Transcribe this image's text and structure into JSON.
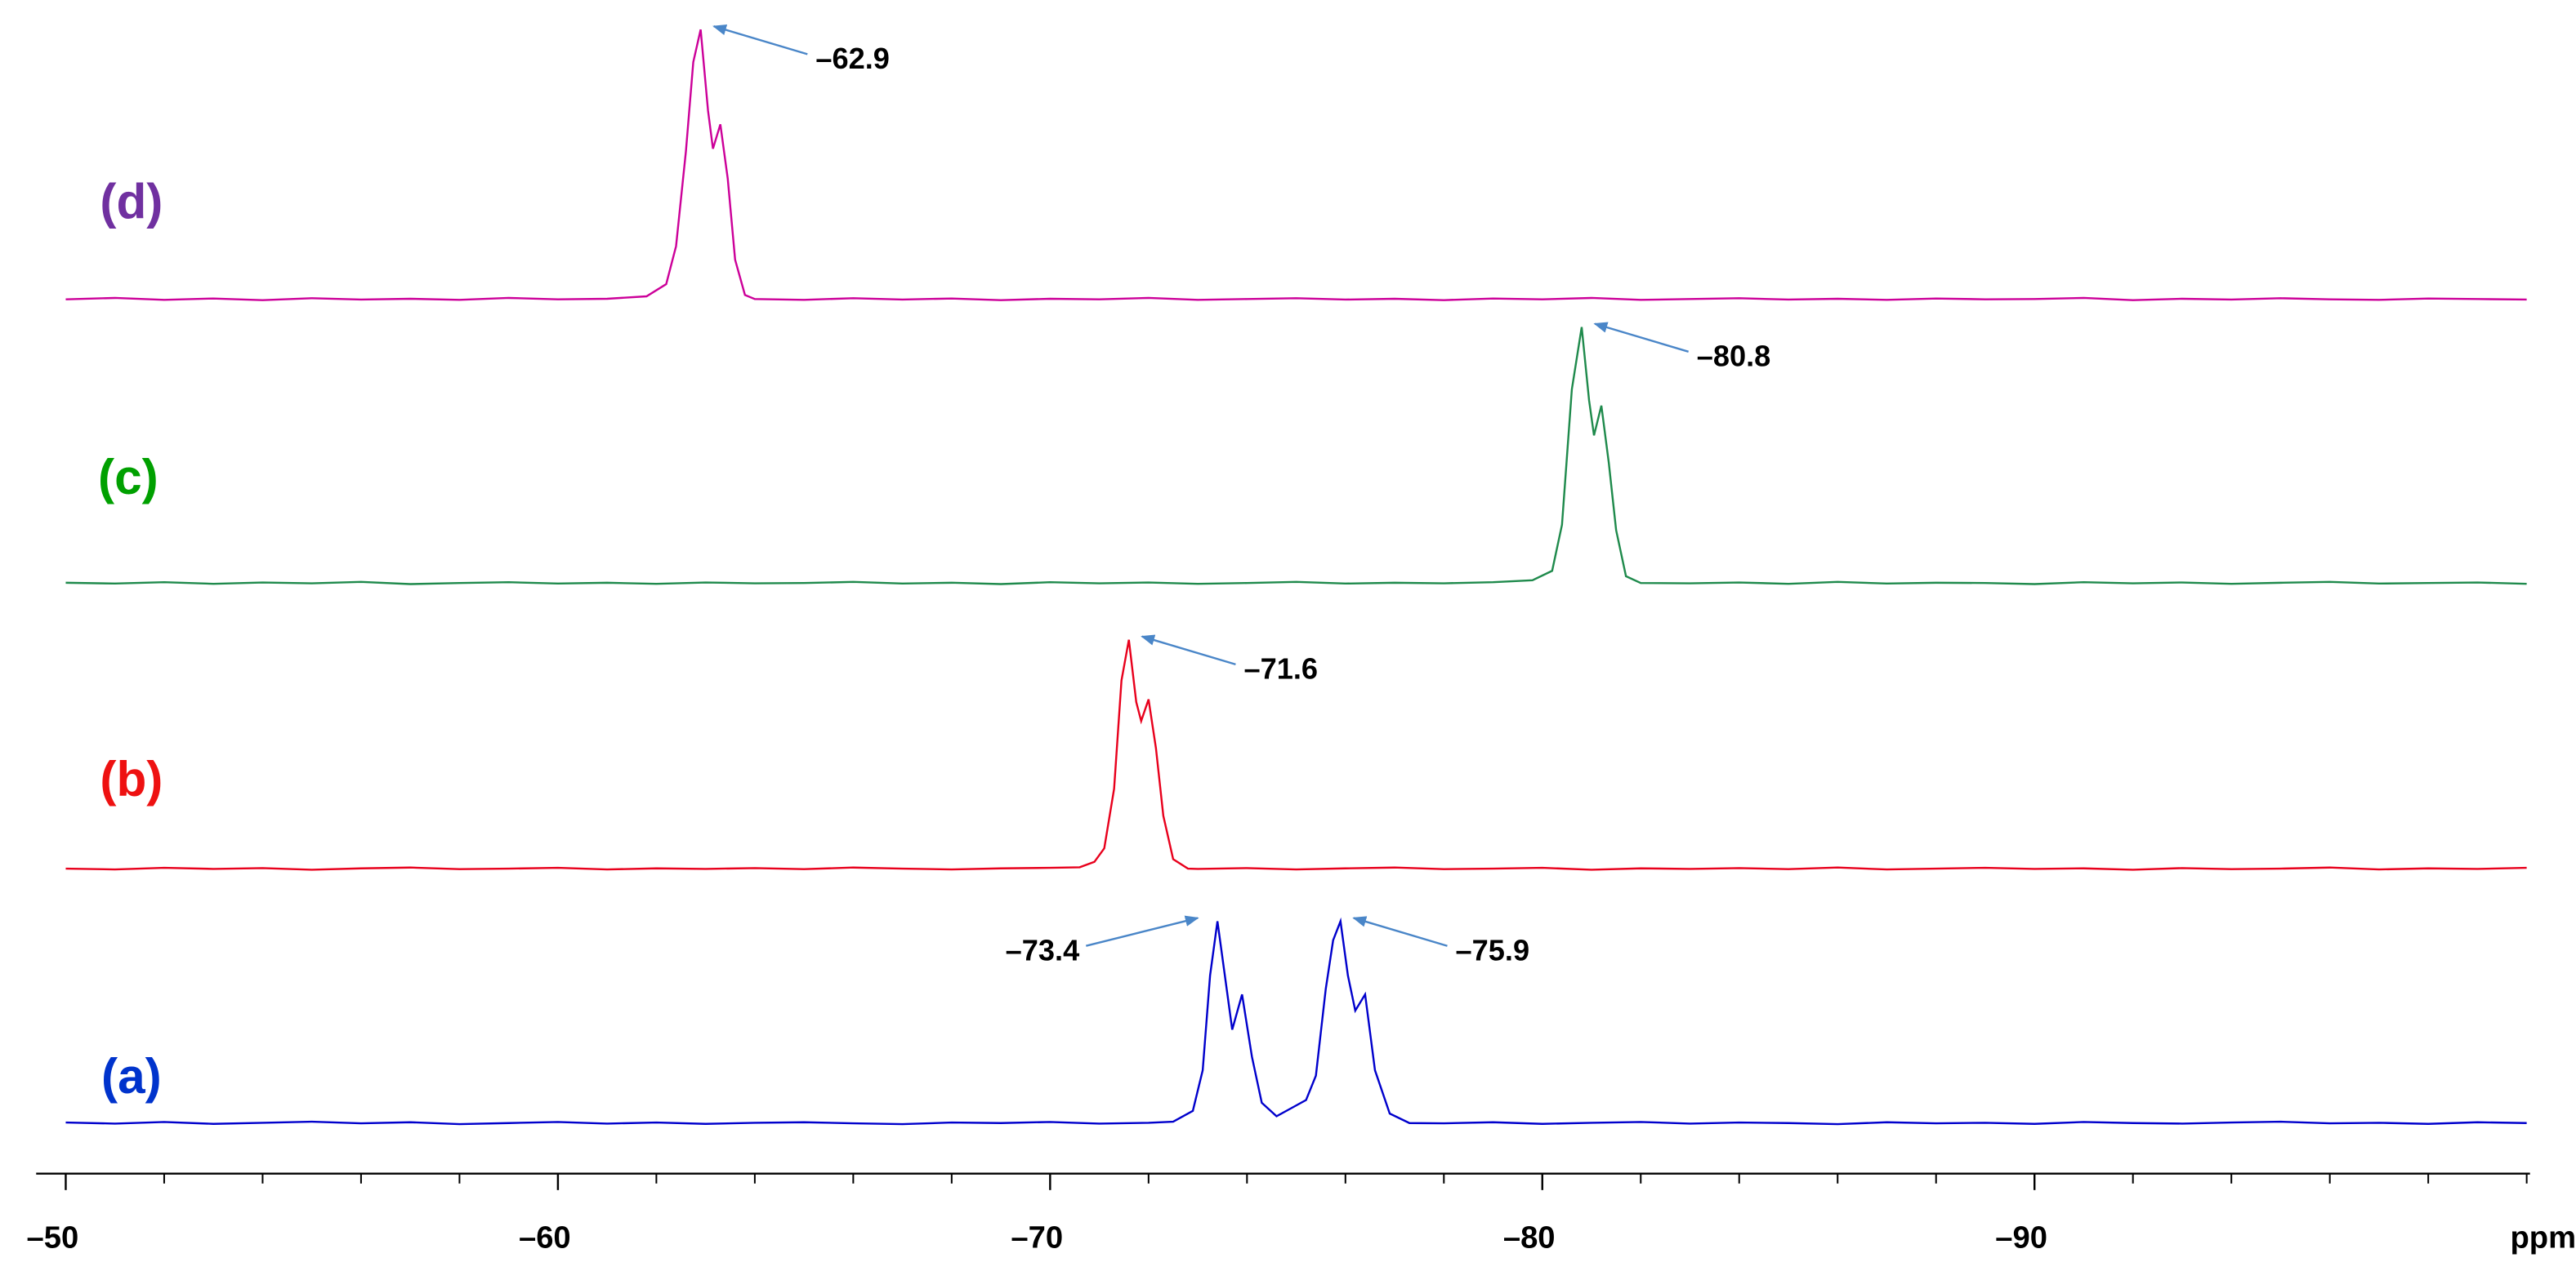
{
  "chart_data": {
    "type": "line",
    "x_label": "ppm",
    "xlim": [
      -50,
      -100
    ],
    "xticks": [
      {
        "value": -50,
        "label": "–50"
      },
      {
        "value": -60,
        "label": "–60"
      },
      {
        "value": -70,
        "label": "–70"
      },
      {
        "value": -80,
        "label": "–80"
      },
      {
        "value": -90,
        "label": "–90"
      }
    ],
    "minor_xticks": [
      -52,
      -54,
      -56,
      -58,
      -62,
      -64,
      -66,
      -68,
      -72,
      -74,
      -76,
      -78,
      -82,
      -84,
      -86,
      -88,
      -92,
      -94,
      -96,
      -98,
      -100
    ],
    "series": [
      {
        "name": "(a)",
        "color": "#0000cc",
        "label_color": "#0033cc",
        "x": [
          -50,
          -51,
          -52,
          -53,
          -54,
          -55,
          -56,
          -57,
          -58,
          -59,
          -60,
          -61,
          -62,
          -63,
          -64,
          -65,
          -66,
          -67,
          -68,
          -69,
          -70,
          -71,
          -72,
          -72.5,
          -72.9,
          -73.1,
          -73.25,
          -73.4,
          -73.55,
          -73.7,
          -73.9,
          -74.1,
          -74.3,
          -74.6,
          -74.9,
          -75.2,
          -75.4,
          -75.6,
          -75.75,
          -75.9,
          -76.05,
          -76.2,
          -76.4,
          -76.6,
          -76.9,
          -77.3,
          -78,
          -79,
          -80,
          -81,
          -82,
          -83,
          -84,
          -85,
          -86,
          -87,
          -88,
          -89,
          -90,
          -91,
          -92,
          -93,
          -94,
          -95,
          -96,
          -97,
          -98,
          -99,
          -100
        ],
        "values": [
          0.7,
          0.3,
          0.9,
          0.2,
          0.6,
          1,
          0.4,
          0.8,
          0.1,
          0.5,
          0.9,
          0.3,
          0.7,
          0.2,
          0.6,
          0.8,
          0.4,
          0.1,
          0.7,
          0.5,
          0.9,
          0.3,
          0.6,
          1,
          5,
          20,
          55,
          75,
          55,
          35,
          48,
          25,
          8,
          3,
          6,
          9,
          18,
          50,
          68,
          75,
          55,
          42,
          48,
          20,
          4,
          0.5,
          0.4,
          0.8,
          0.2,
          0.6,
          0.9,
          0.3,
          0.7,
          0.5,
          0.1,
          0.8,
          0.4,
          0.6,
          0.2,
          0.9,
          0.5,
          0.3,
          0.7,
          1,
          0.4,
          0.6,
          0.2,
          0.8,
          0.5
        ],
        "peak_labels": [
          {
            "value": -73.4,
            "label": "–73.4"
          },
          {
            "value": -75.9,
            "label": "–75.9"
          }
        ]
      },
      {
        "name": "(b)",
        "color": "#e8001c",
        "label_color": "#ee1111",
        "x": [
          -50,
          -51,
          -52,
          -53,
          -54,
          -55,
          -56,
          -57,
          -58,
          -59,
          -60,
          -61,
          -62,
          -63,
          -64,
          -65,
          -66,
          -67,
          -68,
          -69,
          -70,
          -70.6,
          -70.9,
          -71.1,
          -71.3,
          -71.45,
          -71.6,
          -71.75,
          -71.85,
          -72.0,
          -72.15,
          -72.3,
          -72.5,
          -72.8,
          -73,
          -74,
          -75,
          -76,
          -77,
          -78,
          -79,
          -80,
          -81,
          -82,
          -83,
          -84,
          -85,
          -86,
          -87,
          -88,
          -89,
          -90,
          -91,
          -92,
          -93,
          -94,
          -95,
          -96,
          -97,
          -98,
          -99,
          -100
        ],
        "values": [
          0.5,
          0.2,
          0.8,
          0.4,
          0.7,
          0.1,
          0.6,
          0.9,
          0.3,
          0.5,
          0.8,
          0.2,
          0.6,
          0.4,
          0.7,
          0.3,
          0.9,
          0.5,
          0.2,
          0.6,
          0.8,
          1,
          3,
          8,
          30,
          70,
          85,
          62,
          55,
          63,
          45,
          20,
          4,
          0.5,
          0.4,
          0.7,
          0.2,
          0.6,
          0.9,
          0.3,
          0.5,
          0.8,
          0.1,
          0.6,
          0.4,
          0.7,
          0.3,
          0.9,
          0.2,
          0.5,
          0.8,
          0.4,
          0.6,
          0.1,
          0.7,
          0.3,
          0.5,
          0.9,
          0.2,
          0.6,
          0.4,
          0.8
        ],
        "peak_labels": [
          {
            "value": -71.6,
            "label": "–71.6"
          }
        ]
      },
      {
        "name": "(c)",
        "color": "#1f8a4c",
        "label_color": "#00a000",
        "x": [
          -50,
          -51,
          -52,
          -53,
          -54,
          -55,
          -56,
          -57,
          -58,
          -59,
          -60,
          -61,
          -62,
          -63,
          -64,
          -65,
          -66,
          -67,
          -68,
          -69,
          -70,
          -71,
          -72,
          -73,
          -74,
          -75,
          -76,
          -77,
          -78,
          -79,
          -79.8,
          -80.2,
          -80.4,
          -80.6,
          -80.8,
          -80.95,
          -81.05,
          -81.2,
          -81.35,
          -81.5,
          -81.7,
          -82,
          -83,
          -84,
          -85,
          -86,
          -87,
          -88,
          -89,
          -90,
          -91,
          -92,
          -93,
          -94,
          -95,
          -96,
          -97,
          -98,
          -99,
          -100
        ],
        "values": [
          0.6,
          0.3,
          0.8,
          0.2,
          0.7,
          0.4,
          0.9,
          0.1,
          0.5,
          0.8,
          0.3,
          0.6,
          0.2,
          0.7,
          0.4,
          0.5,
          0.9,
          0.3,
          0.6,
          0.1,
          0.8,
          0.4,
          0.7,
          0.2,
          0.5,
          0.9,
          0.3,
          0.6,
          0.4,
          0.8,
          1.5,
          5,
          22,
          72,
          95,
          68,
          55,
          66,
          45,
          20,
          3,
          0.5,
          0.4,
          0.7,
          0.2,
          0.9,
          0.3,
          0.6,
          0.5,
          0.1,
          0.8,
          0.4,
          0.7,
          0.2,
          0.6,
          0.9,
          0.3,
          0.5,
          0.7,
          0.2
        ],
        "peak_labels": [
          {
            "value": -80.8,
            "label": "–80.8"
          }
        ]
      },
      {
        "name": "(d)",
        "color": "#cc0099",
        "label_color": "#7030a0",
        "x": [
          -50,
          -51,
          -52,
          -53,
          -54,
          -55,
          -56,
          -57,
          -58,
          -59,
          -60,
          -61,
          -61.8,
          -62.2,
          -62.4,
          -62.6,
          -62.75,
          -62.9,
          -63.05,
          -63.15,
          -63.3,
          -63.45,
          -63.6,
          -63.8,
          -64,
          -65,
          -66,
          -67,
          -68,
          -69,
          -70,
          -71,
          -72,
          -73,
          -74,
          -75,
          -76,
          -77,
          -78,
          -79,
          -80,
          -81,
          -82,
          -83,
          -84,
          -85,
          -86,
          -87,
          -88,
          -89,
          -90,
          -91,
          -92,
          -93,
          -94,
          -95,
          -96,
          -97,
          -98,
          -99,
          -100
        ],
        "values": [
          0.4,
          0.9,
          0.2,
          0.7,
          0.1,
          0.8,
          0.3,
          0.6,
          0.2,
          0.9,
          0.4,
          0.6,
          1.5,
          6,
          20,
          55,
          88,
          100,
          70,
          56,
          65,
          45,
          15,
          2,
          0.5,
          0.2,
          0.8,
          0.3,
          0.7,
          0.1,
          0.6,
          0.4,
          0.9,
          0.2,
          0.5,
          0.8,
          0.3,
          0.6,
          0.1,
          0.7,
          0.4,
          0.9,
          0.2,
          0.5,
          0.8,
          0.3,
          0.6,
          0.2,
          0.7,
          0.4,
          0.5,
          0.9,
          0.1,
          0.6,
          0.3,
          0.8,
          0.4,
          0.2,
          0.7,
          0.5,
          0.3
        ],
        "peak_labels": [
          {
            "value": -62.9,
            "label": "–62.9"
          }
        ]
      }
    ]
  }
}
